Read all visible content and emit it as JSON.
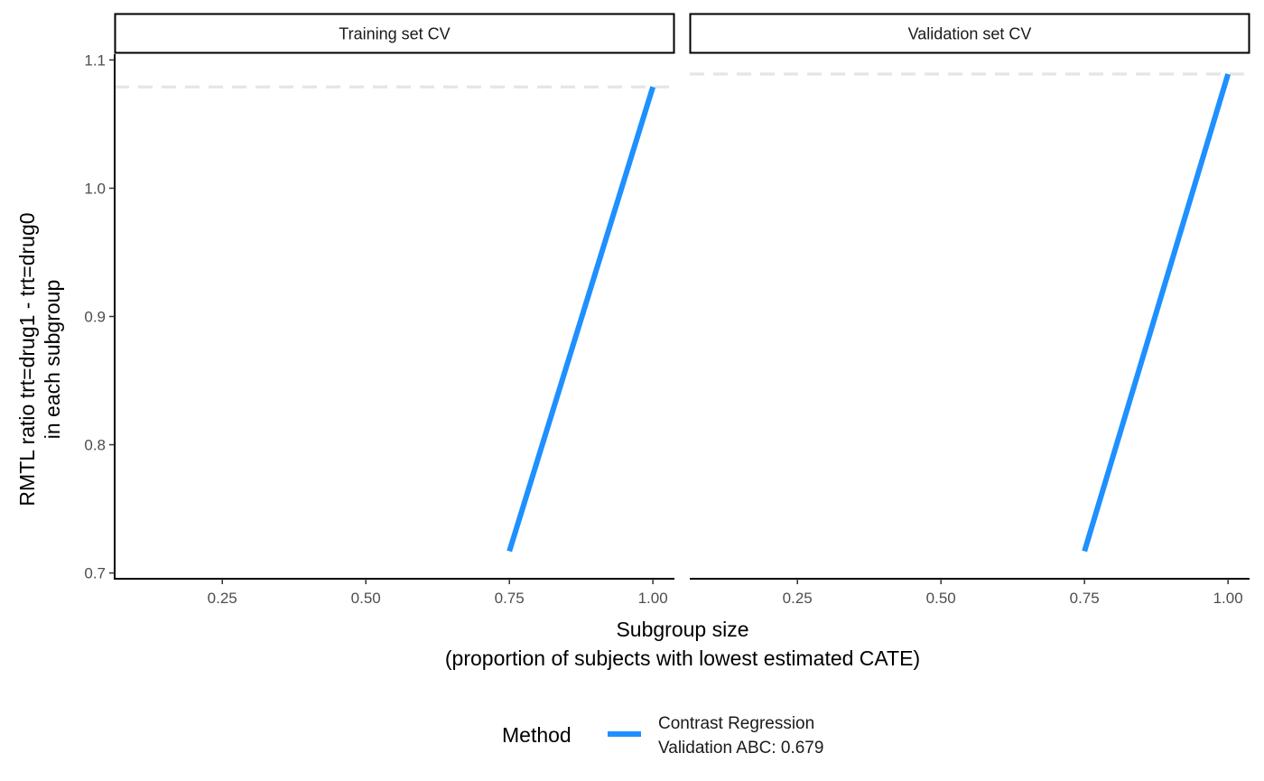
{
  "chart_data": {
    "type": "line",
    "panels": [
      {
        "title": "Training set CV",
        "series": [
          {
            "name": "Contrast Regression\nValidation ABC: 0.679",
            "x": [
              0.75,
              1.0
            ],
            "y": [
              0.717,
              1.079
            ]
          }
        ],
        "reference_line": 1.079
      },
      {
        "title": "Validation set CV",
        "series": [
          {
            "name": "Contrast Regression\nValidation ABC: 0.679",
            "x": [
              0.75,
              1.0
            ],
            "y": [
              0.717,
              1.089
            ]
          }
        ],
        "reference_line": 1.089
      }
    ],
    "xlabel": "Subgroup size\n(proportion of subjects with lowest estimated CATE)",
    "ylabel": "RMTL ratio trt=drug1 - trt=drug0\nin each subgroup",
    "xticks": [
      "0.25",
      "0.50",
      "0.75",
      "1.00"
    ],
    "xtick_values": [
      0.25,
      0.5,
      0.75,
      1.0
    ],
    "yticks": [
      "0.7",
      "0.8",
      "0.9",
      "1.0",
      "1.1"
    ],
    "ytick_values": [
      0.7,
      0.8,
      0.9,
      1.0,
      1.1
    ],
    "xlim": [
      0.0625,
      1.0375
    ],
    "ylim": [
      0.6955,
      1.1045
    ],
    "legend": {
      "title": "Method",
      "position": "bottom",
      "entries": [
        {
          "lines": [
            "Contrast Regression",
            "Validation ABC: 0.679"
          ]
        }
      ]
    },
    "grid": false,
    "colors": {
      "series": "#1e90ff",
      "reference_line": "#e5e5e5",
      "axis": "#000000"
    }
  }
}
